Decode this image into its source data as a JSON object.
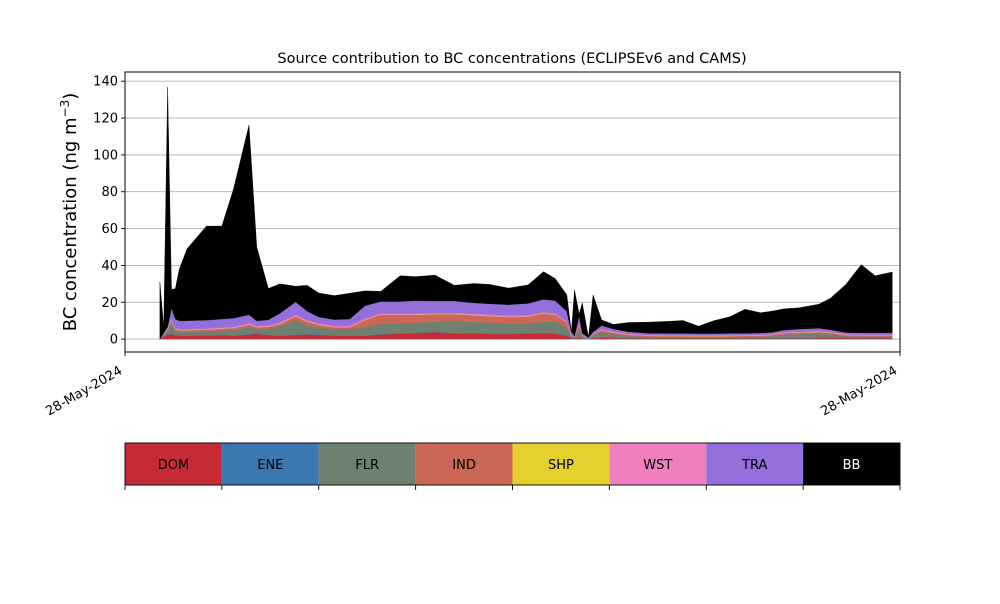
{
  "chart_data": {
    "type": "area",
    "title": "Source contribution to BC concentrations (ECLIPSEv6 and CAMS)",
    "ylabel": "BC concentration (ng m",
    "ylabel_sup": "−3",
    "ylabel_close": ")",
    "xlabel": "",
    "ylim": [
      -7,
      145
    ],
    "xlim": [
      0,
      100
    ],
    "grid": true,
    "y_ticks": [
      0,
      20,
      40,
      60,
      80,
      100,
      120,
      140
    ],
    "x_ticks": [
      {
        "pos": 0,
        "label": "28-May-2024"
      },
      {
        "pos": 100,
        "label": "28-May-2024"
      }
    ],
    "x": [
      4.5,
      5.0,
      5.5,
      6.0,
      6.5,
      7.0,
      8.0,
      10.5,
      12.5,
      14.0,
      16.0,
      17.0,
      18.5,
      20.0,
      22.0,
      23.5,
      25.0,
      27.0,
      29.0,
      31.0,
      33.0,
      35.5,
      37.5,
      40.0,
      42.5,
      45.0,
      47.0,
      49.5,
      52.0,
      54.0,
      55.5,
      57.0,
      57.6,
      58.0,
      58.6,
      59.0,
      59.8,
      60.4,
      61.5,
      63.0,
      65.0,
      67.5,
      70.0,
      72.0,
      74.0,
      76.0,
      78.0,
      80.0,
      82.0,
      83.5,
      85.0,
      87.0,
      89.5,
      91.0,
      93.0,
      95.0,
      96.8,
      99.0
    ],
    "series": [
      {
        "name": "DOM",
        "color": "#c62a36",
        "values": [
          0,
          1.2,
          2.5,
          2.8,
          2.0,
          1.8,
          1.8,
          1.9,
          2.0,
          1.8,
          2.5,
          3.0,
          2.0,
          1.8,
          2.2,
          2.5,
          2.3,
          1.8,
          1.8,
          1.8,
          2.5,
          3.0,
          3.2,
          3.8,
          3.0,
          3.2,
          2.8,
          2.8,
          3.0,
          3.2,
          3.0,
          1.8,
          0.6,
          0.2,
          1.0,
          0.3,
          0.0,
          0.4,
          0.8,
          0.6,
          0.5,
          0.4,
          0.4,
          0.4,
          0.4,
          0.4,
          0.4,
          0.4,
          0.4,
          0.4,
          0.5,
          0.5,
          0.6,
          0.6,
          0.6,
          0.6,
          0.6,
          0.6
        ]
      },
      {
        "name": "ENE",
        "color": "#3a78b2",
        "values": [
          0,
          0.1,
          0.2,
          0.2,
          0.2,
          0.2,
          0.2,
          0.2,
          0.2,
          0.2,
          0.2,
          0.2,
          0.2,
          0.2,
          0.2,
          0.2,
          0.2,
          0.2,
          0.2,
          0.2,
          0.2,
          0.2,
          0.2,
          0.2,
          0.2,
          0.2,
          0.2,
          0.2,
          0.2,
          0.2,
          0.2,
          0.2,
          0.1,
          0.1,
          0.1,
          0.1,
          0.1,
          0.1,
          0.1,
          0.1,
          0.1,
          0.1,
          0.1,
          0.1,
          0.1,
          0.1,
          0.1,
          0.1,
          0.1,
          0.1,
          0.1,
          0.1,
          0.1,
          0.1,
          0.1,
          0.1,
          0.1,
          0.1
        ]
      },
      {
        "name": "FLR",
        "color": "#6e8070",
        "values": [
          0,
          1.0,
          2.0,
          6.0,
          2.2,
          2.0,
          2.0,
          2.2,
          2.5,
          3.0,
          4.0,
          2.5,
          3.5,
          5.0,
          8.0,
          5.0,
          4.0,
          3.5,
          3.5,
          4.5,
          5.5,
          5.5,
          5.5,
          5.5,
          6.5,
          6.0,
          6.0,
          5.5,
          5.5,
          6.0,
          6.5,
          4.5,
          1.0,
          0.5,
          5.0,
          1.0,
          0.2,
          1.5,
          3.0,
          2.0,
          1.2,
          0.8,
          0.7,
          0.7,
          0.6,
          0.6,
          0.7,
          0.8,
          0.9,
          1.2,
          2.0,
          2.2,
          2.4,
          2.0,
          1.0,
          0.8,
          0.8,
          0.8
        ]
      },
      {
        "name": "IND",
        "color": "#cb6755",
        "values": [
          0,
          0.3,
          0.5,
          1.0,
          0.8,
          0.8,
          0.8,
          0.9,
          1.0,
          1.0,
          1.2,
          0.8,
          1.0,
          1.3,
          2.0,
          1.8,
          1.3,
          1.0,
          1.0,
          4.0,
          5.0,
          4.5,
          4.3,
          4.0,
          3.8,
          3.6,
          3.5,
          3.5,
          3.5,
          4.5,
          3.5,
          2.5,
          0.5,
          0.2,
          2.0,
          0.5,
          0.1,
          0.5,
          1.0,
          0.8,
          0.6,
          0.5,
          0.5,
          0.5,
          0.5,
          0.5,
          0.5,
          0.5,
          0.5,
          0.6,
          0.7,
          0.8,
          0.8,
          0.7,
          0.5,
          0.5,
          0.5,
          0.5
        ]
      },
      {
        "name": "SHP",
        "color": "#e6d02e",
        "values": [
          0,
          0.05,
          0.1,
          0.1,
          0.1,
          0.1,
          0.1,
          0.1,
          0.1,
          0.1,
          0.1,
          0.1,
          0.1,
          0.1,
          0.1,
          0.1,
          0.1,
          0.1,
          0.1,
          0.1,
          0.1,
          0.1,
          0.1,
          0.1,
          0.1,
          0.1,
          0.1,
          0.1,
          0.1,
          0.1,
          0.1,
          0.1,
          0.05,
          0.05,
          0.1,
          0.05,
          0.05,
          0.05,
          0.1,
          0.1,
          0.1,
          0.1,
          0.1,
          0.1,
          0.1,
          0.1,
          0.1,
          0.1,
          0.1,
          0.1,
          0.1,
          0.1,
          0.1,
          0.1,
          0.1,
          0.1,
          0.1,
          0.1
        ]
      },
      {
        "name": "WST",
        "color": "#f07fbf",
        "values": [
          0,
          0.2,
          0.5,
          0.8,
          0.6,
          0.5,
          0.5,
          0.5,
          0.5,
          0.5,
          0.6,
          0.5,
          0.5,
          0.6,
          0.7,
          0.6,
          0.6,
          0.5,
          0.5,
          0.6,
          0.6,
          0.6,
          0.6,
          0.6,
          0.6,
          0.6,
          0.6,
          0.6,
          0.6,
          0.6,
          0.6,
          0.5,
          0.2,
          0.1,
          0.4,
          0.2,
          0.1,
          0.2,
          0.4,
          0.4,
          0.3,
          0.3,
          0.3,
          0.3,
          0.3,
          0.3,
          0.3,
          0.3,
          0.3,
          0.3,
          0.3,
          0.4,
          0.4,
          0.4,
          0.3,
          0.3,
          0.3,
          0.3
        ]
      },
      {
        "name": "TRA",
        "color": "#946fdb",
        "values": [
          0,
          0.5,
          1.0,
          6.0,
          5.0,
          4.5,
          4.6,
          4.5,
          4.6,
          4.8,
          4.6,
          2.8,
          3.2,
          5.0,
          7.0,
          5.0,
          3.5,
          3.5,
          3.8,
          7.0,
          6.5,
          6.5,
          7.0,
          6.5,
          6.5,
          6.0,
          6.0,
          6.0,
          6.5,
          7.0,
          7.0,
          5.5,
          1.5,
          0.5,
          4.0,
          1.0,
          0.3,
          1.2,
          2.0,
          1.5,
          1.2,
          1.0,
          1.0,
          1.0,
          1.0,
          1.0,
          1.0,
          1.0,
          1.0,
          1.0,
          1.2,
          1.4,
          1.5,
          1.2,
          1.0,
          1.0,
          1.0,
          1.0
        ]
      },
      {
        "name": "BB",
        "color": "#000000",
        "values": [
          31.0,
          3.0,
          130.0,
          10.0,
          16.5,
          28.0,
          39.0,
          51.0,
          50.5,
          70.0,
          103.0,
          40.0,
          17.0,
          16.0,
          8.5,
          14.0,
          13.0,
          13.0,
          14.0,
          8.0,
          5.5,
          14.0,
          13.0,
          14.0,
          8.5,
          10.5,
          10.5,
          9.0,
          10.0,
          15.0,
          12.0,
          9.0,
          0.0,
          25.0,
          1.0,
          16.5,
          0.2,
          20.0,
          3.0,
          2.5,
          5.0,
          6.0,
          6.5,
          7.0,
          4.0,
          7.0,
          9.0,
          13.0,
          11.0,
          11.5,
          11.5,
          11.5,
          13.0,
          17.0,
          26.0,
          37.0,
          31.0,
          33.0
        ]
      }
    ]
  },
  "legend": {
    "items": [
      {
        "label": "DOM",
        "color": "#c62a36",
        "text_color": "#000000"
      },
      {
        "label": "ENE",
        "color": "#3a78b2",
        "text_color": "#000000"
      },
      {
        "label": "FLR",
        "color": "#6e8070",
        "text_color": "#000000"
      },
      {
        "label": "IND",
        "color": "#cb6755",
        "text_color": "#000000"
      },
      {
        "label": "SHP",
        "color": "#e6d02e",
        "text_color": "#000000"
      },
      {
        "label": "WST",
        "color": "#f07fbf",
        "text_color": "#000000"
      },
      {
        "label": "TRA",
        "color": "#946fdb",
        "text_color": "#000000"
      },
      {
        "label": "BB",
        "color": "#000000",
        "text_color": "#ffffff"
      }
    ]
  }
}
